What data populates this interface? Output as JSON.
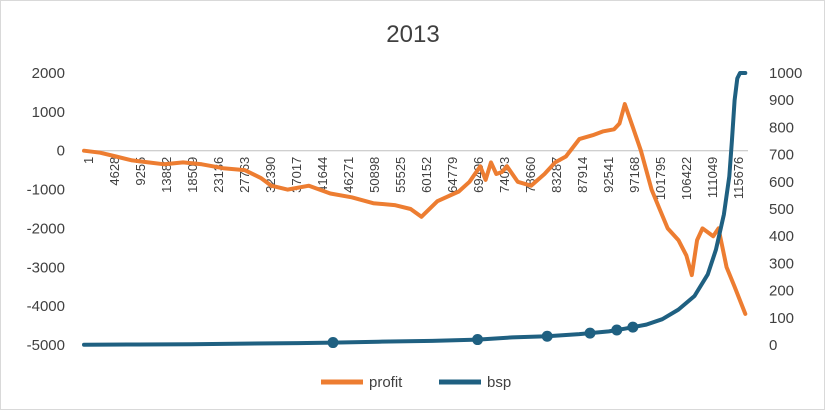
{
  "chart_data": {
    "type": "line",
    "title": "2013",
    "xlabel": "",
    "ylabel": "",
    "grid": false,
    "legend_position": "bottom",
    "x_tick_labels": [
      "1",
      "4628",
      "9255",
      "13882",
      "18509",
      "23136",
      "27763",
      "32390",
      "37017",
      "41644",
      "46271",
      "50898",
      "55525",
      "60152",
      "64779",
      "69406",
      "74033",
      "78660",
      "83287",
      "87914",
      "92541",
      "97168",
      "101795",
      "106422",
      "111049",
      "115676"
    ],
    "x_range": [
      1,
      124000
    ],
    "y_left": {
      "ticks": [
        2000,
        1000,
        0,
        -1000,
        -2000,
        -3000,
        -4000,
        -5000
      ],
      "range": [
        -5000,
        2000
      ]
    },
    "y_right": {
      "ticks": [
        1000,
        900,
        800,
        700,
        600,
        500,
        400,
        300,
        200,
        100,
        0
      ],
      "range": [
        0,
        1000
      ]
    },
    "series": [
      {
        "name": "profit",
        "axis": "left",
        "color": "#ed7d31",
        "x": [
          1,
          3000,
          6000,
          9000,
          12000,
          15000,
          18500,
          22000,
          26000,
          30000,
          33000,
          35000,
          38000,
          42000,
          46000,
          50000,
          54000,
          58000,
          61000,
          63000,
          66000,
          70000,
          72000,
          73000,
          74000,
          75000,
          76000,
          77000,
          78000,
          79000,
          81000,
          83500,
          86000,
          88000,
          90000,
          92500,
          95000,
          97000,
          99000,
          100000,
          101000,
          102500,
          104000,
          106000,
          107500,
          109000,
          111000,
          112500,
          113500,
          114500,
          115500,
          117500,
          118500,
          120000,
          121500,
          123500
        ],
        "y": [
          0,
          -50,
          -150,
          -250,
          -300,
          -350,
          -300,
          -350,
          -450,
          -500,
          -700,
          -900,
          -1000,
          -900,
          -1100,
          -1200,
          -1350,
          -1400,
          -1500,
          -1700,
          -1300,
          -1050,
          -800,
          -600,
          -400,
          -750,
          -300,
          -600,
          -550,
          -400,
          -800,
          -900,
          -600,
          -300,
          -150,
          300,
          400,
          500,
          550,
          700,
          1200,
          600,
          0,
          -1000,
          -1500,
          -2000,
          -2300,
          -2700,
          -3200,
          -2300,
          -2000,
          -2200,
          -2000,
          -3000,
          -3500,
          -4200
        ]
      },
      {
        "name": "bsp",
        "axis": "right",
        "color": "#1f6081",
        "x": [
          1,
          10000,
          20000,
          30000,
          40000,
          46500,
          55000,
          65000,
          73500,
          80000,
          86500,
          92500,
          98000,
          101000,
          105000,
          108000,
          111000,
          114000,
          116500,
          118000,
          119500,
          120500,
          121000,
          121500,
          122000,
          122500,
          123500
        ],
        "y": [
          1,
          2,
          3,
          5,
          7,
          9,
          12,
          15,
          20,
          28,
          32,
          40,
          50,
          60,
          75,
          95,
          130,
          180,
          260,
          350,
          480,
          620,
          750,
          900,
          980,
          1000,
          1000
        ],
        "marker_x": [
          46500,
          73500,
          86500,
          94500,
          99500,
          102500
        ]
      }
    ]
  }
}
